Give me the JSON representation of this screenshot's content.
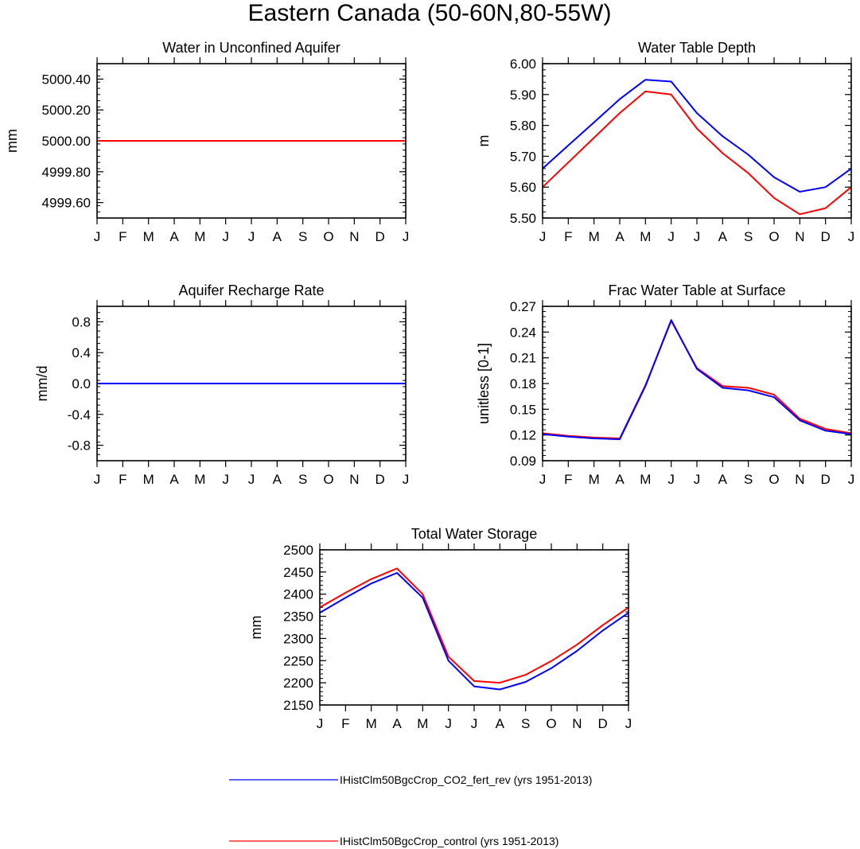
{
  "figure": {
    "title": "Eastern Canada (50-60N,80-55W)",
    "month_labels": [
      "J",
      "F",
      "M",
      "A",
      "M",
      "J",
      "J",
      "A",
      "S",
      "O",
      "N",
      "D",
      "J"
    ],
    "colors": {
      "series_blue": "#0000ff",
      "series_red": "#ff0000",
      "axis": "#000000",
      "background": "#ffffff"
    }
  },
  "legend": {
    "entries": [
      {
        "label": "IHistClm50BgcCrop_CO2_fert_rev (yrs 1951-2013)",
        "color": "#0000ff"
      },
      {
        "label": "IHistClm50BgcCrop_control (yrs 1951-2013)",
        "color": "#ff0000"
      }
    ]
  },
  "chart_data": [
    {
      "type": "line",
      "title": "Water in Unconfined Aquifer",
      "ylabel": "mm",
      "ylim": [
        4999.5,
        5000.5
      ],
      "yticks": [
        "4999.60",
        "4999.80",
        "5000.00",
        "5000.20",
        "5000.40"
      ],
      "x": [
        "J",
        "F",
        "M",
        "A",
        "M",
        "J",
        "J",
        "A",
        "S",
        "O",
        "N",
        "D",
        "J"
      ],
      "series": [
        {
          "name": "IHistClm50BgcCrop_CO2_fert_rev (yrs 1951-2013)",
          "color": "#0000ff",
          "values": [
            5000,
            5000,
            5000,
            5000,
            5000,
            5000,
            5000,
            5000,
            5000,
            5000,
            5000,
            5000,
            5000
          ]
        },
        {
          "name": "IHistClm50BgcCrop_control (yrs 1951-2013)",
          "color": "#ff0000",
          "values": [
            5000,
            5000,
            5000,
            5000,
            5000,
            5000,
            5000,
            5000,
            5000,
            5000,
            5000,
            5000,
            5000
          ]
        }
      ]
    },
    {
      "type": "line",
      "title": "Water Table Depth",
      "ylabel": "m",
      "ylim": [
        5.5,
        6.0
      ],
      "yticks": [
        "5.50",
        "5.60",
        "5.70",
        "5.80",
        "5.90",
        "6.00"
      ],
      "x": [
        "J",
        "F",
        "M",
        "A",
        "M",
        "J",
        "J",
        "A",
        "S",
        "O",
        "N",
        "D",
        "J"
      ],
      "series": [
        {
          "name": "IHistClm50BgcCrop_CO2_fert_rev (yrs 1951-2013)",
          "color": "#0000ff",
          "values": [
            5.66,
            5.735,
            5.81,
            5.885,
            5.948,
            5.942,
            5.84,
            5.765,
            5.705,
            5.632,
            5.585,
            5.6,
            5.66
          ]
        },
        {
          "name": "IHistClm50BgcCrop_control (yrs 1951-2013)",
          "color": "#ff0000",
          "values": [
            5.6,
            5.68,
            5.76,
            5.84,
            5.91,
            5.9,
            5.79,
            5.71,
            5.645,
            5.565,
            5.512,
            5.532,
            5.6
          ]
        }
      ]
    },
    {
      "type": "line",
      "title": "Aquifer Recharge Rate",
      "ylabel": "mm/d",
      "ylim": [
        -1.0,
        1.0
      ],
      "yticks": [
        "-0.8",
        "-0.4",
        "0.0",
        "0.4",
        "0.8"
      ],
      "x": [
        "J",
        "F",
        "M",
        "A",
        "M",
        "J",
        "J",
        "A",
        "S",
        "O",
        "N",
        "D",
        "J"
      ],
      "series": [
        {
          "name": "IHistClm50BgcCrop_control (yrs 1951-2013)",
          "color": "#ff0000",
          "values": [
            0,
            0,
            0,
            0,
            0,
            0,
            0,
            0,
            0,
            0,
            0,
            0,
            0
          ]
        },
        {
          "name": "IHistClm50BgcCrop_CO2_fert_rev (yrs 1951-2013)",
          "color": "#0000ff",
          "values": [
            0,
            0,
            0,
            0,
            0,
            0,
            0,
            0,
            0,
            0,
            0,
            0,
            0
          ]
        }
      ]
    },
    {
      "type": "line",
      "title": "Frac Water Table at Surface",
      "ylabel": "unitless [0-1]",
      "ylim": [
        0.09,
        0.27
      ],
      "yticks": [
        "0.09",
        "0.12",
        "0.15",
        "0.18",
        "0.21",
        "0.24",
        "0.27"
      ],
      "x": [
        "J",
        "F",
        "M",
        "A",
        "M",
        "J",
        "J",
        "A",
        "S",
        "O",
        "N",
        "D",
        "J"
      ],
      "series": [
        {
          "name": "IHistClm50BgcCrop_control (yrs 1951-2013)",
          "color": "#ff0000",
          "values": [
            0.122,
            0.119,
            0.117,
            0.116,
            0.178,
            0.253,
            0.198,
            0.177,
            0.175,
            0.167,
            0.139,
            0.127,
            0.122
          ]
        },
        {
          "name": "IHistClm50BgcCrop_CO2_fert_rev (yrs 1951-2013)",
          "color": "#0000ff",
          "values": [
            0.121,
            0.118,
            0.116,
            0.115,
            0.177,
            0.254,
            0.197,
            0.175,
            0.172,
            0.164,
            0.137,
            0.125,
            0.121
          ]
        }
      ]
    },
    {
      "type": "line",
      "title": "Total Water Storage",
      "ylabel": "mm",
      "ylim": [
        2150,
        2500
      ],
      "yticks": [
        "2150",
        "2200",
        "2250",
        "2300",
        "2350",
        "2400",
        "2450",
        "2500"
      ],
      "x": [
        "J",
        "F",
        "M",
        "A",
        "M",
        "J",
        "J",
        "A",
        "S",
        "O",
        "N",
        "D",
        "J"
      ],
      "series": [
        {
          "name": "IHistClm50BgcCrop_control (yrs 1951-2013)",
          "color": "#ff0000",
          "values": [
            2370,
            2403,
            2434,
            2458,
            2400,
            2259,
            2204,
            2200,
            2218,
            2249,
            2286,
            2330,
            2370
          ]
        },
        {
          "name": "IHistClm50BgcCrop_CO2_fert_rev (yrs 1951-2013)",
          "color": "#0000ff",
          "values": [
            2358,
            2392,
            2424,
            2448,
            2392,
            2250,
            2192,
            2185,
            2202,
            2233,
            2272,
            2318,
            2358
          ]
        }
      ]
    }
  ]
}
